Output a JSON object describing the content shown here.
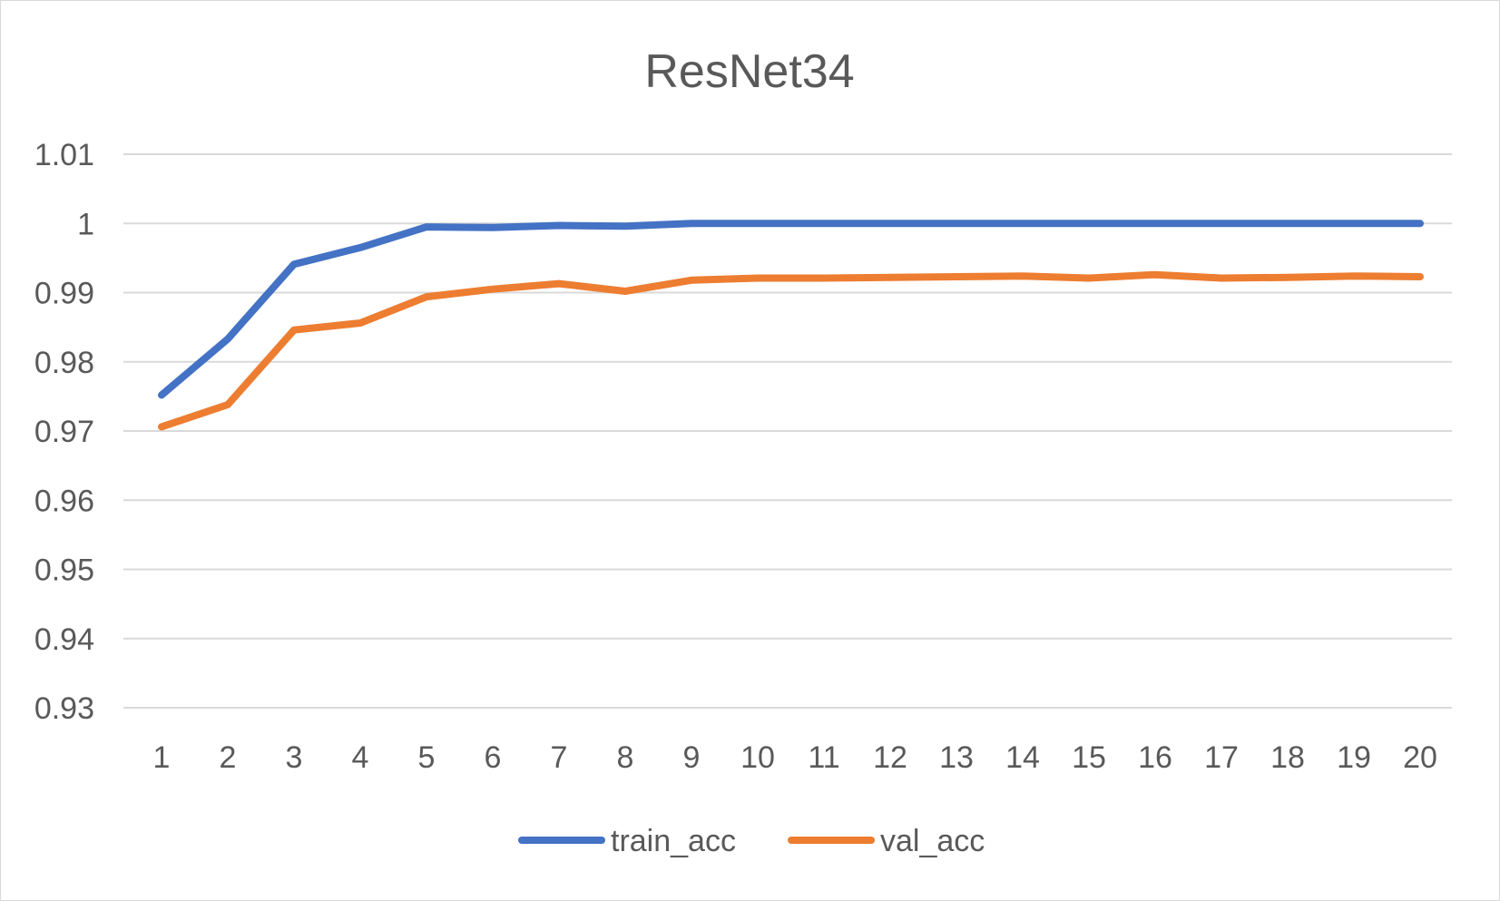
{
  "chart_data": {
    "type": "line",
    "title": "ResNet34",
    "xlabel": "",
    "ylabel": "",
    "categories": [
      "1",
      "2",
      "3",
      "4",
      "5",
      "6",
      "7",
      "8",
      "9",
      "10",
      "11",
      "12",
      "13",
      "14",
      "15",
      "16",
      "17",
      "18",
      "19",
      "20"
    ],
    "ylim": [
      0.93,
      1.01
    ],
    "yticks": [
      "0.93",
      "0.94",
      "0.95",
      "0.96",
      "0.97",
      "0.98",
      "0.99",
      "1",
      "1.01"
    ],
    "grid": true,
    "legend": "bottom",
    "series": [
      {
        "name": "train_acc",
        "color": "#4472C4",
        "values": [
          0.9752,
          0.9833,
          0.9941,
          0.9965,
          0.9995,
          0.9994,
          0.9997,
          0.9996,
          1.0,
          1.0,
          1.0,
          1.0,
          1.0,
          1.0,
          1.0,
          1.0,
          1.0,
          1.0,
          1.0,
          1.0
        ]
      },
      {
        "name": "val_acc",
        "color": "#ED7D31",
        "values": [
          0.9706,
          0.9738,
          0.9846,
          0.9856,
          0.9894,
          0.9905,
          0.9913,
          0.9902,
          0.9918,
          0.9921,
          0.9921,
          0.9922,
          0.9923,
          0.9924,
          0.9921,
          0.9926,
          0.9921,
          0.9922,
          0.9924,
          0.9923
        ]
      }
    ]
  }
}
